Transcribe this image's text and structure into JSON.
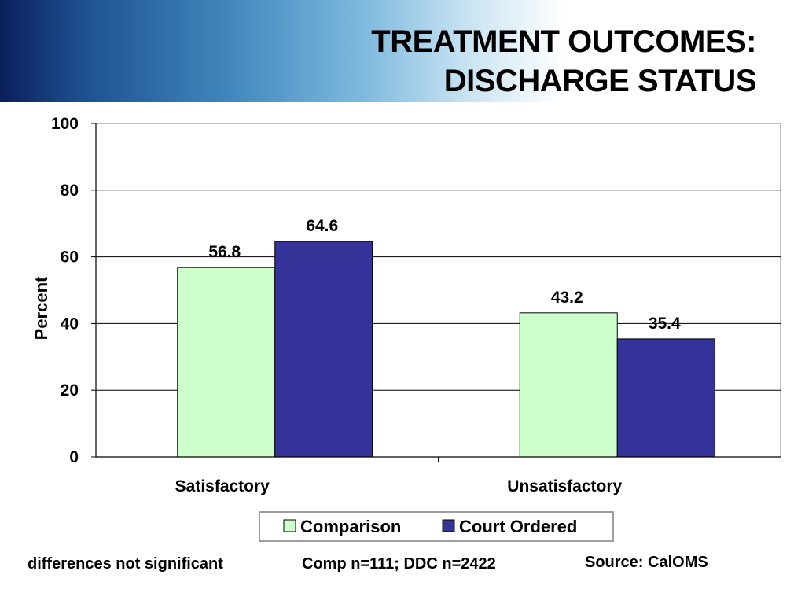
{
  "header": {
    "title_line1": "TREATMENT OUTCOMES:",
    "title_line2": "DISCHARGE STATUS"
  },
  "chart_data": {
    "type": "bar",
    "categories": [
      "Satisfactory",
      "Unsatisfactory"
    ],
    "series": [
      {
        "name": "Comparison",
        "values": [
          56.8,
          43.2
        ],
        "color": "#ccffcc"
      },
      {
        "name": "Court Ordered",
        "values": [
          64.6,
          35.4
        ],
        "color": "#333399"
      }
    ],
    "data_labels": [
      [
        "56.8",
        "43.2"
      ],
      [
        "64.6",
        "35.4"
      ]
    ],
    "ylabel": "Percent",
    "xlabel": "",
    "ylim": [
      0,
      100
    ],
    "yticks": [
      0,
      20,
      40,
      60,
      80,
      100
    ],
    "grid": true,
    "legend": "bottom"
  },
  "footer": {
    "note": "differences not significant",
    "sample": "Comp n=111; DDC n=2422",
    "source": "Source: CalOMS"
  }
}
